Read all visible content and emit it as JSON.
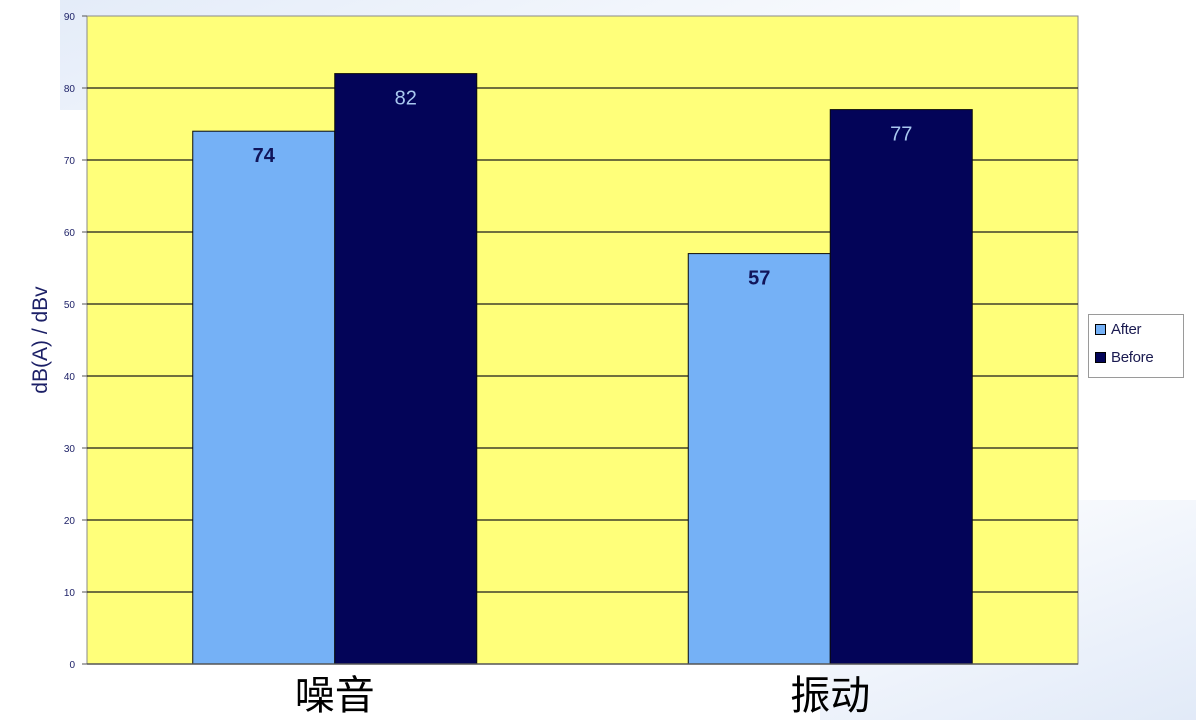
{
  "chart_data": {
    "type": "bar",
    "categories": [
      "噪音",
      "振动"
    ],
    "series": [
      {
        "name": "After",
        "values": [
          74,
          57
        ],
        "color": "#75b1f6",
        "label_color": "#11155a"
      },
      {
        "name": "Before",
        "values": [
          82,
          77
        ],
        "color": "#030458",
        "label_color": "#a9c8ef"
      }
    ],
    "ylabel": "dB(A) / dBv",
    "xlabel": "",
    "ylim": [
      0,
      90
    ],
    "yticks": [
      0,
      10,
      20,
      30,
      40,
      50,
      60,
      70,
      80,
      90
    ],
    "grid": true,
    "plot_background": "#ffff7a",
    "legend_position": "right"
  },
  "legend": {
    "items": [
      {
        "label": "After",
        "color": "#75b1f6"
      },
      {
        "label": "Before",
        "color": "#030458"
      }
    ]
  }
}
